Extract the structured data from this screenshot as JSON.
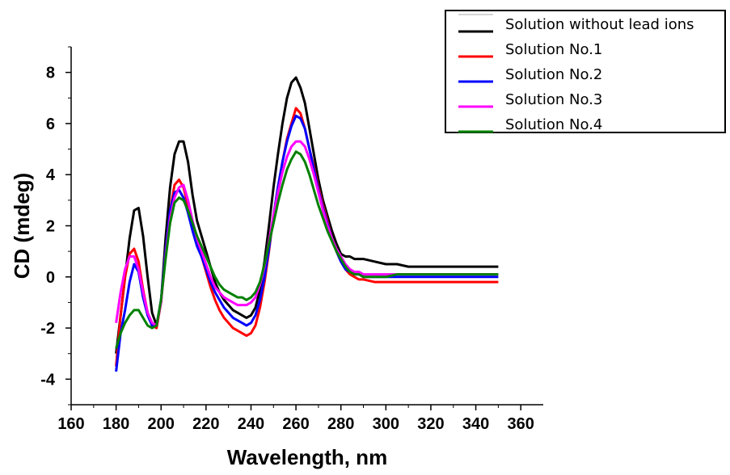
{
  "chart_data": {
    "type": "line",
    "xlabel": "Wavelength, nm",
    "ylabel": "CD (mdeg)",
    "xlim": [
      160,
      370
    ],
    "ylim": [
      -5,
      9
    ],
    "x_ticks": [
      160,
      180,
      200,
      220,
      240,
      260,
      280,
      300,
      320,
      340,
      360
    ],
    "y_ticks": [
      -4,
      -2,
      0,
      2,
      4,
      6,
      8
    ],
    "legend_position": "top-right",
    "legend": [
      "Solution without lead ions",
      "Solution No.1",
      "Solution No.2",
      "Solution No.3",
      "Solution No.4"
    ],
    "series": [
      {
        "name": "Solution without lead ions",
        "color": "#000000",
        "x": [
          180,
          182,
          184,
          186,
          188,
          190,
          192,
          194,
          196,
          198,
          200,
          202,
          204,
          206,
          208,
          210,
          212,
          214,
          216,
          218,
          220,
          222,
          224,
          226,
          228,
          230,
          232,
          234,
          236,
          238,
          240,
          242,
          244,
          246,
          248,
          250,
          252,
          254,
          256,
          258,
          260,
          262,
          264,
          266,
          268,
          270,
          272,
          274,
          276,
          278,
          280,
          282,
          284,
          286,
          288,
          290,
          295,
          300,
          305,
          310,
          315,
          320,
          325,
          330,
          335,
          340,
          345,
          350
        ],
        "y": [
          -3.0,
          -1.5,
          0.0,
          1.5,
          2.6,
          2.7,
          1.6,
          0.0,
          -1.4,
          -1.9,
          -1.0,
          1.5,
          3.5,
          4.8,
          5.3,
          5.3,
          4.5,
          3.2,
          2.2,
          1.6,
          1.0,
          0.4,
          -0.2,
          -0.6,
          -0.9,
          -1.1,
          -1.3,
          -1.4,
          -1.5,
          -1.6,
          -1.5,
          -1.2,
          -0.5,
          0.6,
          2.0,
          3.5,
          4.8,
          6.0,
          7.0,
          7.6,
          7.8,
          7.4,
          6.8,
          5.8,
          4.8,
          3.8,
          3.0,
          2.4,
          1.8,
          1.3,
          0.9,
          0.8,
          0.8,
          0.7,
          0.7,
          0.7,
          0.6,
          0.5,
          0.5,
          0.4,
          0.4,
          0.4,
          0.4,
          0.4,
          0.4,
          0.4,
          0.4,
          0.4
        ]
      },
      {
        "name": "Solution No.1",
        "color": "#ff0000",
        "x": [
          180,
          182,
          184,
          186,
          188,
          190,
          192,
          194,
          196,
          198,
          200,
          202,
          204,
          206,
          208,
          210,
          212,
          214,
          216,
          218,
          220,
          222,
          224,
          226,
          228,
          230,
          232,
          234,
          236,
          238,
          240,
          242,
          244,
          246,
          248,
          250,
          252,
          254,
          256,
          258,
          260,
          262,
          264,
          266,
          268,
          270,
          272,
          274,
          276,
          278,
          280,
          282,
          284,
          286,
          288,
          290,
          295,
          300,
          305,
          310,
          315,
          320,
          325,
          330,
          335,
          340,
          345,
          350
        ],
        "y": [
          -3.5,
          -1.5,
          0.0,
          0.9,
          1.1,
          0.6,
          -0.5,
          -1.4,
          -1.9,
          -2.0,
          -1.0,
          1.0,
          2.6,
          3.6,
          3.8,
          3.5,
          2.8,
          2.0,
          1.3,
          0.8,
          0.2,
          -0.4,
          -0.9,
          -1.3,
          -1.6,
          -1.8,
          -2.0,
          -2.1,
          -2.2,
          -2.3,
          -2.2,
          -1.9,
          -1.2,
          -0.2,
          1.0,
          2.4,
          3.5,
          4.5,
          5.4,
          6.0,
          6.6,
          6.4,
          5.8,
          5.0,
          4.3,
          3.5,
          2.8,
          2.2,
          1.5,
          1.0,
          0.6,
          0.3,
          0.1,
          0.0,
          -0.1,
          -0.1,
          -0.2,
          -0.2,
          -0.2,
          -0.2,
          -0.2,
          -0.2,
          -0.2,
          -0.2,
          -0.2,
          -0.2,
          -0.2,
          -0.2
        ]
      },
      {
        "name": "Solution No.2",
        "color": "#0000ff",
        "x": [
          180,
          182,
          184,
          186,
          188,
          190,
          192,
          194,
          196,
          198,
          200,
          202,
          204,
          206,
          208,
          210,
          212,
          214,
          216,
          218,
          220,
          222,
          224,
          226,
          228,
          230,
          232,
          234,
          236,
          238,
          240,
          242,
          244,
          246,
          248,
          250,
          252,
          254,
          256,
          258,
          260,
          262,
          264,
          266,
          268,
          270,
          272,
          274,
          276,
          278,
          280,
          282,
          284,
          286,
          288,
          290,
          295,
          300,
          305,
          310,
          315,
          320,
          325,
          330,
          335,
          340,
          345,
          350
        ],
        "y": [
          -3.7,
          -2.2,
          -1.3,
          -0.2,
          0.5,
          0.2,
          -0.8,
          -1.5,
          -1.9,
          -1.9,
          -0.9,
          1.0,
          2.6,
          3.3,
          3.4,
          3.1,
          2.5,
          1.8,
          1.2,
          0.8,
          0.3,
          -0.2,
          -0.6,
          -0.9,
          -1.2,
          -1.4,
          -1.6,
          -1.7,
          -1.8,
          -1.9,
          -1.8,
          -1.5,
          -0.9,
          0.0,
          1.1,
          2.4,
          3.5,
          4.5,
          5.3,
          5.9,
          6.3,
          6.2,
          5.8,
          5.0,
          4.2,
          3.4,
          2.7,
          2.1,
          1.5,
          1.0,
          0.6,
          0.3,
          0.2,
          0.1,
          0.1,
          0.0,
          0.0,
          0.0,
          0.0,
          0.0,
          0.0,
          0.0,
          0.0,
          0.0,
          0.0,
          0.0,
          0.0,
          0.0
        ]
      },
      {
        "name": "Solution No.3",
        "color": "#ff00ff",
        "x": [
          180,
          182,
          184,
          186,
          188,
          190,
          192,
          194,
          196,
          198,
          200,
          202,
          204,
          206,
          208,
          210,
          212,
          214,
          216,
          218,
          220,
          222,
          224,
          226,
          228,
          230,
          232,
          234,
          236,
          238,
          240,
          242,
          244,
          246,
          248,
          250,
          252,
          254,
          256,
          258,
          260,
          262,
          264,
          266,
          268,
          270,
          272,
          274,
          276,
          278,
          280,
          282,
          284,
          286,
          288,
          290,
          295,
          300,
          305,
          310,
          315,
          320,
          325,
          330,
          335,
          340,
          345,
          350
        ],
        "y": [
          -1.8,
          -0.6,
          0.3,
          0.8,
          0.8,
          0.3,
          -0.6,
          -1.4,
          -1.8,
          -1.9,
          -1.0,
          0.8,
          2.3,
          3.1,
          3.5,
          3.6,
          3.0,
          2.2,
          1.5,
          1.0,
          0.5,
          0.0,
          -0.4,
          -0.6,
          -0.8,
          -0.9,
          -1.0,
          -1.1,
          -1.1,
          -1.1,
          -1.0,
          -0.8,
          -0.3,
          0.4,
          1.4,
          2.4,
          3.3,
          4.1,
          4.7,
          5.1,
          5.3,
          5.3,
          5.1,
          4.6,
          4.0,
          3.3,
          2.6,
          2.0,
          1.5,
          1.1,
          0.8,
          0.5,
          0.3,
          0.2,
          0.2,
          0.1,
          0.1,
          0.1,
          0.1,
          0.1,
          0.1,
          0.1,
          0.1,
          0.1,
          0.1,
          0.1,
          0.1,
          0.1
        ]
      },
      {
        "name": "Solution No.4",
        "color": "#008000",
        "x": [
          180,
          182,
          184,
          186,
          188,
          190,
          192,
          194,
          196,
          198,
          200,
          202,
          204,
          206,
          208,
          210,
          212,
          214,
          216,
          218,
          220,
          222,
          224,
          226,
          228,
          230,
          232,
          234,
          236,
          238,
          240,
          242,
          244,
          246,
          248,
          250,
          252,
          254,
          256,
          258,
          260,
          262,
          264,
          266,
          268,
          270,
          272,
          274,
          276,
          278,
          280,
          282,
          284,
          286,
          288,
          290,
          295,
          300,
          305,
          310,
          315,
          320,
          325,
          330,
          335,
          340,
          345,
          350
        ],
        "y": [
          -2.8,
          -2.2,
          -1.8,
          -1.5,
          -1.3,
          -1.3,
          -1.6,
          -1.9,
          -2.0,
          -1.9,
          -0.9,
          0.7,
          2.1,
          2.9,
          3.1,
          3.0,
          2.6,
          2.1,
          1.6,
          1.2,
          0.8,
          0.4,
          0.0,
          -0.3,
          -0.5,
          -0.6,
          -0.7,
          -0.8,
          -0.8,
          -0.9,
          -0.8,
          -0.6,
          -0.2,
          0.5,
          1.3,
          2.1,
          2.9,
          3.6,
          4.2,
          4.6,
          4.9,
          4.8,
          4.5,
          4.0,
          3.4,
          2.8,
          2.3,
          1.8,
          1.4,
          1.0,
          0.7,
          0.4,
          0.2,
          0.1,
          0.1,
          0.0,
          0.0,
          0.0,
          0.1,
          0.1,
          0.1,
          0.1,
          0.1,
          0.1,
          0.1,
          0.1,
          0.1,
          0.1
        ]
      }
    ]
  }
}
